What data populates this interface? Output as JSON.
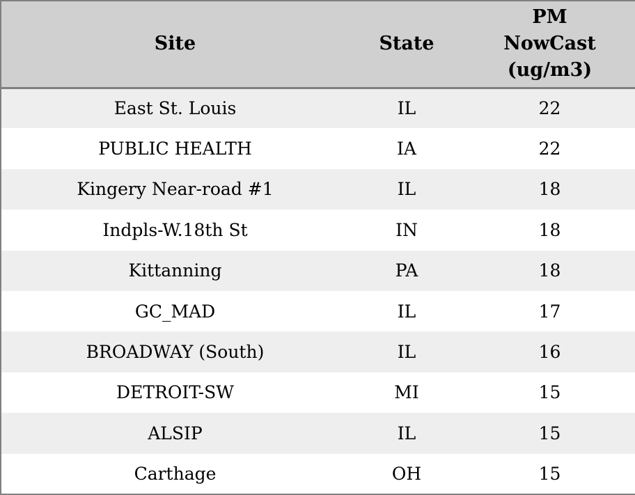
{
  "chart_data": {
    "type": "table",
    "title": "",
    "columns": [
      "Site",
      "State",
      "PM NowCast (ug/m3)"
    ],
    "rows": [
      [
        "East St. Louis",
        "IL",
        22
      ],
      [
        "PUBLIC HEALTH",
        "IA",
        22
      ],
      [
        "Kingery Near-road #1",
        "IL",
        18
      ],
      [
        "Indpls-W.18th St",
        "IN",
        18
      ],
      [
        "Kittanning",
        "PA",
        18
      ],
      [
        "GC_MAD",
        "IL",
        17
      ],
      [
        "BROADWAY (South)",
        "IL",
        16
      ],
      [
        "DETROIT-SW",
        "MI",
        15
      ],
      [
        "ALSIP",
        "IL",
        15
      ],
      [
        "Carthage",
        "OH",
        15
      ]
    ],
    "layout": {
      "zebra_striping": true,
      "all_cells_centered": true,
      "header_position": "top"
    }
  },
  "header": {
    "site_label": "Site",
    "state_label": "State",
    "pm_label_full": "PM NowCast (ug/m3)",
    "pm_line1": "PM",
    "pm_line2": "NowCast",
    "pm_line3": "(ug/m3)"
  },
  "colors": {
    "header_bg": "#d0d0d0",
    "stripe_bg": "#eeeeee",
    "row_bg": "#ffffff",
    "border": "#808080",
    "text": "#000000"
  }
}
